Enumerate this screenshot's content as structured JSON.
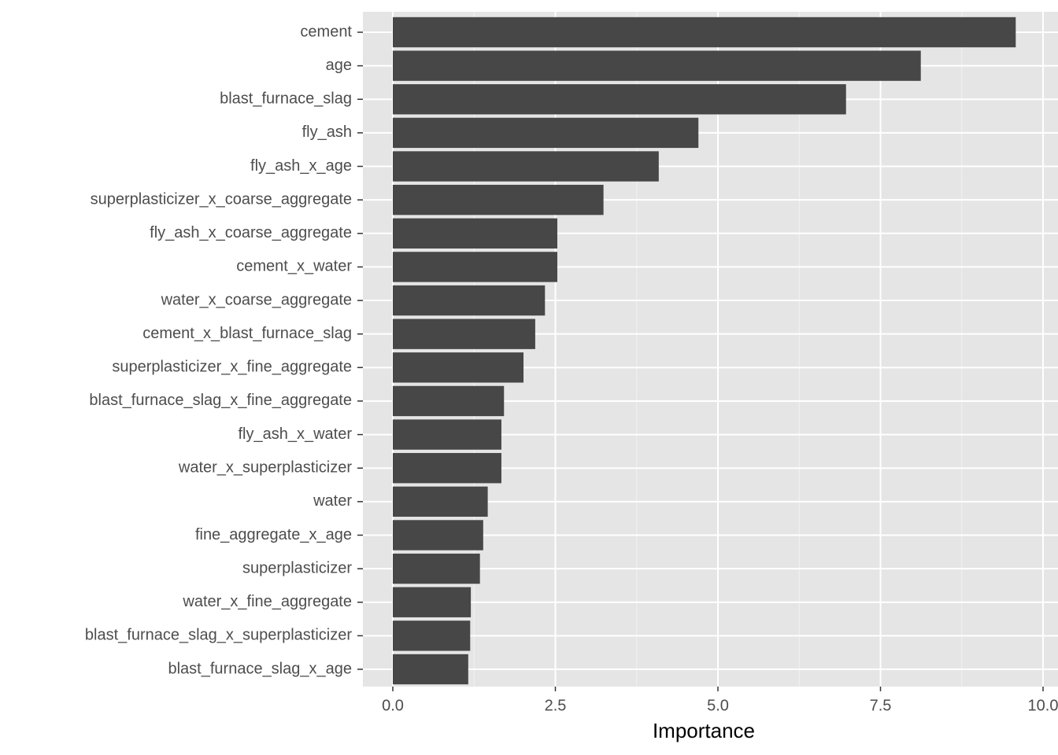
{
  "chart_data": {
    "type": "barh",
    "x_label": "Importance",
    "categories": [
      "cement",
      "age",
      "blast_furnace_slag",
      "fly_ash",
      "fly_ash_x_age",
      "superplasticizer_x_coarse_aggregate",
      "fly_ash_x_coarse_aggregate",
      "cement_x_water",
      "water_x_coarse_aggregate",
      "cement_x_blast_furnace_slag",
      "superplasticizer_x_fine_aggregate",
      "blast_furnace_slag_x_fine_aggregate",
      "fly_ash_x_water",
      "water_x_superplasticizer",
      "water",
      "fine_aggregate_x_age",
      "superplasticizer",
      "water_x_fine_aggregate",
      "blast_furnace_slag_x_superplasticizer",
      "blast_furnace_slag_x_age"
    ],
    "values": [
      9.58,
      8.12,
      6.97,
      4.7,
      4.09,
      3.24,
      2.53,
      2.53,
      2.34,
      2.19,
      2.01,
      1.71,
      1.67,
      1.67,
      1.46,
      1.39,
      1.34,
      1.2,
      1.19,
      1.16
    ],
    "color": "#474747",
    "xlim": [
      -0.46,
      10.23
    ],
    "xticks": [
      {
        "value": 0,
        "label": "0.0"
      },
      2.5,
      {
        "value": 5,
        "label": "5.0"
      },
      7.5,
      {
        "value": 10,
        "label": "10.0"
      }
    ],
    "grid": true
  }
}
